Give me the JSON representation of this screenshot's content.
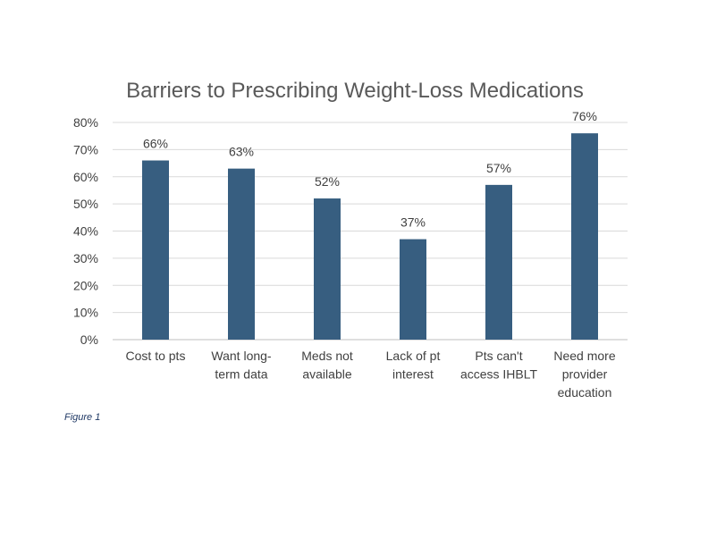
{
  "chart_data": {
    "type": "bar",
    "title": "Barriers to Prescribing Weight-Loss Medications",
    "categories": [
      [
        "Cost to pts"
      ],
      [
        "Want long-",
        "term data"
      ],
      [
        "Meds not",
        "available"
      ],
      [
        "Lack of pt",
        "interest"
      ],
      [
        "Pts can't",
        "access IHBLT"
      ],
      [
        "Need more",
        "provider",
        "education"
      ]
    ],
    "values": [
      66,
      63,
      52,
      37,
      57,
      76
    ],
    "data_labels": [
      "66%",
      "63%",
      "52%",
      "37%",
      "57%",
      "76%"
    ],
    "yticks": [
      0,
      10,
      20,
      30,
      40,
      50,
      60,
      70,
      80
    ],
    "ytick_labels": [
      "0%",
      "10%",
      "20%",
      "30%",
      "40%",
      "50%",
      "60%",
      "70%",
      "80%"
    ],
    "ylim": [
      0,
      80
    ],
    "grid": true,
    "bar_color": "#375e80"
  },
  "caption": "Figure 1"
}
